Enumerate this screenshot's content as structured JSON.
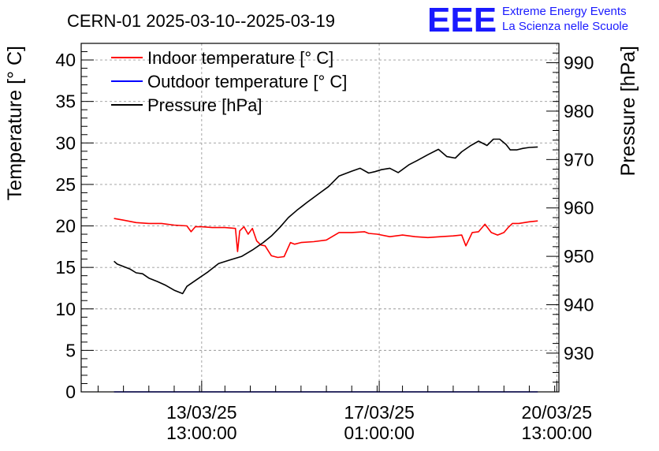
{
  "chart_data": {
    "type": "line",
    "title": "CERN-01 2025-03-10--2025-03-19",
    "logo": {
      "text": "EEE",
      "line1": "Extreme Energy Events",
      "line2": "La Scienza nelle Scuole",
      "color": "#1a1aff"
    },
    "ylabel": "Temperature [° C]",
    "y2label": "Pressure [hPa]",
    "ylim": [
      0,
      42
    ],
    "y2lim": [
      922,
      994
    ],
    "yticks": [
      0,
      5,
      10,
      15,
      20,
      25,
      30,
      35,
      40
    ],
    "y2ticks": [
      930,
      940,
      950,
      960,
      970,
      980,
      990
    ],
    "xlim": [
      "2025-03-11T04:00",
      "2025-03-20T14:00"
    ],
    "xticks": [
      {
        "line1": "13/03/25",
        "line2": "13:00:00",
        "t": "2025-03-13T13:00"
      },
      {
        "line1": "17/03/25",
        "line2": "01:00:00",
        "t": "2025-03-17T01:00"
      },
      {
        "line1": "20/03/25",
        "line2": "13:00:00",
        "t": "2025-03-20T13:00"
      }
    ],
    "grid": true,
    "legend_position": "top-left",
    "series": [
      {
        "name": "Indoor temperature [° C]",
        "color": "#ff0000",
        "axis": "left",
        "x": [
          "2025-03-11T19:30",
          "2025-03-12T00:00",
          "2025-03-12T06:00",
          "2025-03-12T12:00",
          "2025-03-12T18:00",
          "2025-03-13T00:00",
          "2025-03-13T06:00",
          "2025-03-13T08:00",
          "2025-03-13T10:00",
          "2025-03-13T13:00",
          "2025-03-13T18:00",
          "2025-03-14T00:00",
          "2025-03-14T05:00",
          "2025-03-14T06:00",
          "2025-03-14T07:00",
          "2025-03-14T09:00",
          "2025-03-14T11:00",
          "2025-03-14T13:00",
          "2025-03-14T15:00",
          "2025-03-14T17:00",
          "2025-03-14T19:00",
          "2025-03-14T22:00",
          "2025-03-15T01:00",
          "2025-03-15T04:00",
          "2025-03-15T07:00",
          "2025-03-15T09:00",
          "2025-03-15T12:00",
          "2025-03-15T18:00",
          "2025-03-16T00:00",
          "2025-03-16T06:00",
          "2025-03-16T12:00",
          "2025-03-16T18:00",
          "2025-03-16T20:00",
          "2025-03-17T00:00",
          "2025-03-17T06:00",
          "2025-03-17T12:00",
          "2025-03-17T18:00",
          "2025-03-18T00:00",
          "2025-03-18T06:00",
          "2025-03-18T12:00",
          "2025-03-18T16:00",
          "2025-03-18T18:00",
          "2025-03-18T21:00",
          "2025-03-19T00:00",
          "2025-03-19T03:00",
          "2025-03-19T06:00",
          "2025-03-19T09:00",
          "2025-03-19T12:00",
          "2025-03-19T14:00",
          "2025-03-19T16:00",
          "2025-03-19T19:00",
          "2025-03-20T00:00",
          "2025-03-20T04:00"
        ],
        "y": [
          20.9,
          20.7,
          20.4,
          20.3,
          20.3,
          20.1,
          20.0,
          19.3,
          19.9,
          19.9,
          19.8,
          19.8,
          19.7,
          16.9,
          19.4,
          19.9,
          19.0,
          19.7,
          18.2,
          17.7,
          17.6,
          16.4,
          16.2,
          16.3,
          18.0,
          17.8,
          18.0,
          18.1,
          18.3,
          19.2,
          19.2,
          19.3,
          19.1,
          19.0,
          18.7,
          18.9,
          18.7,
          18.6,
          18.7,
          18.8,
          18.9,
          17.6,
          19.2,
          19.3,
          20.2,
          19.2,
          18.9,
          19.2,
          19.8,
          20.3,
          20.3,
          20.5,
          20.6
        ]
      },
      {
        "name": "Outdoor temperature [° C]",
        "color": "#0000ff",
        "axis": "left",
        "x": [
          "2025-03-11T19:30",
          "2025-03-20T04:00"
        ],
        "y": [
          0,
          0
        ]
      },
      {
        "name": "Pressure [hPa]",
        "color": "#000000",
        "axis": "right",
        "x": [
          "2025-03-11T19:30",
          "2025-03-11T21:00",
          "2025-03-12T00:00",
          "2025-03-12T03:00",
          "2025-03-12T06:00",
          "2025-03-12T09:00",
          "2025-03-12T12:00",
          "2025-03-12T16:00",
          "2025-03-12T20:00",
          "2025-03-13T00:00",
          "2025-03-13T04:00",
          "2025-03-13T06:00",
          "2025-03-13T10:00",
          "2025-03-13T16:00",
          "2025-03-13T21:00",
          "2025-03-14T02:00",
          "2025-03-14T08:00",
          "2025-03-14T13:00",
          "2025-03-14T18:00",
          "2025-03-14T22:00",
          "2025-03-15T02:00",
          "2025-03-15T06:00",
          "2025-03-15T10:00",
          "2025-03-15T15:00",
          "2025-03-15T20:00",
          "2025-03-16T01:00",
          "2025-03-16T06:00",
          "2025-03-16T12:00",
          "2025-03-16T16:00",
          "2025-03-16T20:00",
          "2025-03-16T23:00",
          "2025-03-17T02:00",
          "2025-03-17T06:00",
          "2025-03-17T10:00",
          "2025-03-17T15:00",
          "2025-03-17T19:00",
          "2025-03-18T00:00",
          "2025-03-18T05:00",
          "2025-03-18T09:00",
          "2025-03-18T13:00",
          "2025-03-18T16:00",
          "2025-03-18T20:00",
          "2025-03-19T00:00",
          "2025-03-19T04:00",
          "2025-03-19T07:00",
          "2025-03-19T10:00",
          "2025-03-19T13:00",
          "2025-03-19T15:00",
          "2025-03-19T18:00",
          "2025-03-19T21:00",
          "2025-03-20T00:00",
          "2025-03-20T04:00"
        ],
        "y": [
          949.0,
          948.4,
          947.9,
          947.4,
          946.6,
          946.4,
          945.5,
          944.8,
          944.0,
          943.0,
          942.3,
          943.8,
          945.0,
          946.8,
          948.5,
          949.2,
          950.0,
          951.3,
          952.8,
          954.2,
          956.0,
          958.0,
          959.5,
          961.2,
          962.8,
          964.4,
          966.6,
          967.6,
          968.2,
          967.2,
          967.5,
          967.9,
          968.2,
          967.3,
          968.9,
          969.8,
          971.0,
          972.1,
          970.6,
          970.3,
          971.6,
          972.8,
          973.8,
          972.9,
          974.2,
          974.2,
          973.1,
          972.0,
          972.0,
          972.3,
          972.5,
          972.6
        ]
      }
    ]
  }
}
